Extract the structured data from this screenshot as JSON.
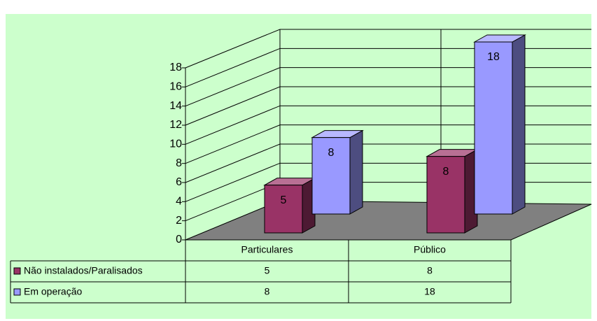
{
  "chart_data": {
    "type": "bar3d",
    "categories": [
      "Particulares",
      "Público"
    ],
    "series": [
      {
        "name": "Não instalados/Paralisados",
        "color": "#993366",
        "values": [
          5,
          8
        ]
      },
      {
        "name": "Em operação",
        "color": "#9999ff",
        "values": [
          8,
          18
        ]
      }
    ],
    "ylim": [
      0,
      18
    ],
    "yticks": [
      0,
      2,
      4,
      6,
      8,
      10,
      12,
      14,
      16,
      18
    ],
    "grid": true,
    "data_table": true
  }
}
